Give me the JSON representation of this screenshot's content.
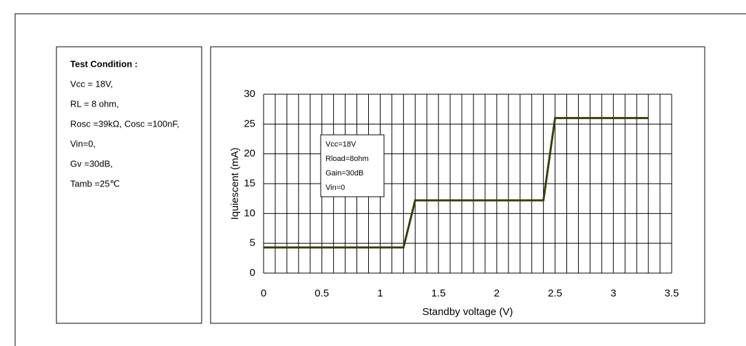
{
  "conditions": {
    "title": "Test Condition :",
    "lines": [
      "Vcc = 18V,",
      "RL = 8 ohm,",
      "Rosc =39kΩ, Cosc =100nF,",
      "Vin=0,",
      "Gv =30dB,",
      "Tamb =25℃"
    ]
  },
  "chart_data": {
    "type": "line",
    "x_label": "Standby voltage (V)",
    "y_label": "Iquiescent (mA)",
    "annotation": [
      "Vcc=18V",
      "Rload=8ohm",
      "Gain=30dB",
      "Vin=0"
    ],
    "x": [
      0,
      1.2,
      1.3,
      2.4,
      2.5,
      3.3
    ],
    "series": [
      {
        "color": "#3b3b0c",
        "values": [
          4.3,
          4.3,
          12.2,
          12.2,
          26,
          26
        ]
      }
    ],
    "xlim": [
      0,
      3.5
    ],
    "xticks": [
      0,
      0.5,
      1,
      1.5,
      2,
      2.5,
      3,
      3.5
    ],
    "ylim": [
      0,
      30
    ],
    "yticks": [
      0,
      5,
      10,
      15,
      20,
      25,
      30
    ],
    "grid": true,
    "x_minor_grid_step": 0.1
  }
}
